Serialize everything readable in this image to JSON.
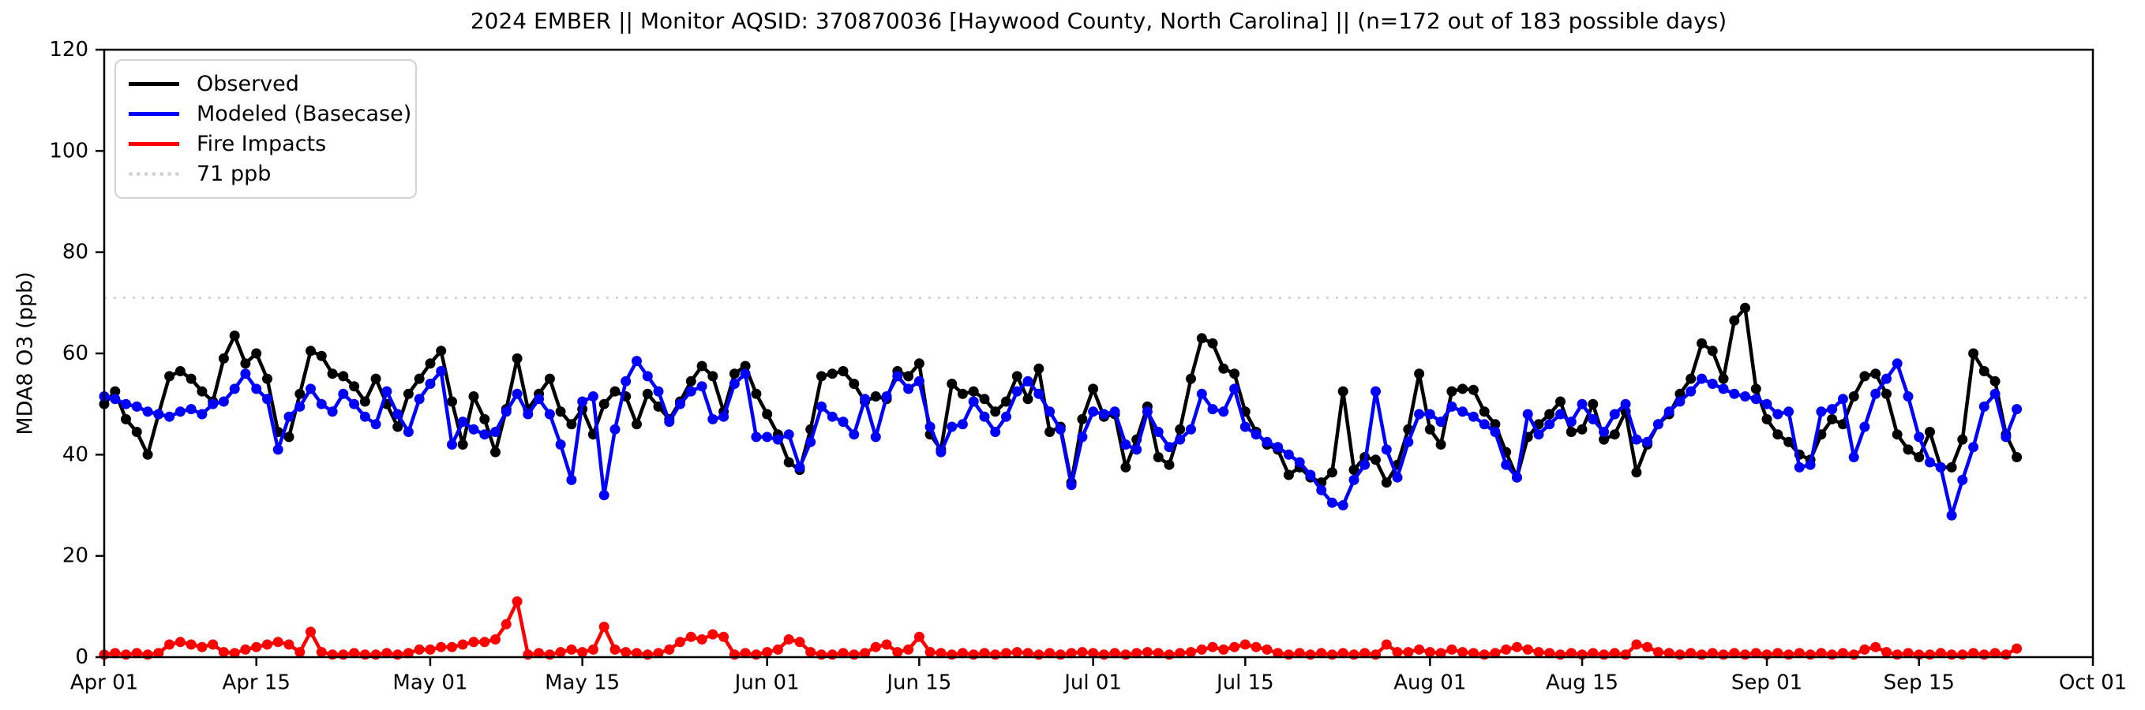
{
  "title": "2024 EMBER || Monitor AQSID: 370870036 [Haywood County, North Carolina] || (n=172 out of 183 possible days)",
  "chart_data": {
    "type": "line",
    "title": "2024 EMBER || Monitor AQSID: 370870036 [Haywood County, North Carolina] || (n=172 out of 183 possible days)",
    "ylabel": "MDA8 O3 (ppb)",
    "ylim": [
      0,
      120
    ],
    "yticks": [
      0,
      20,
      40,
      60,
      80,
      100,
      120
    ],
    "x_total_days": 183,
    "x_start_label": "Apr 01",
    "grid": "off",
    "legend_position": "upper-left",
    "xticks": [
      {
        "label": "Apr 01",
        "day": 0
      },
      {
        "label": "Apr 15",
        "day": 14
      },
      {
        "label": "May 01",
        "day": 30
      },
      {
        "label": "May 15",
        "day": 44
      },
      {
        "label": "Jun 01",
        "day": 61
      },
      {
        "label": "Jun 15",
        "day": 75
      },
      {
        "label": "Jul 01",
        "day": 91
      },
      {
        "label": "Jul 15",
        "day": 105
      },
      {
        "label": "Aug 01",
        "day": 122
      },
      {
        "label": "Aug 15",
        "day": 136
      },
      {
        "label": "Sep 01",
        "day": 153
      },
      {
        "label": "Sep 15",
        "day": 167
      },
      {
        "label": "Oct 01",
        "day": 183
      }
    ],
    "threshold": {
      "value": 71,
      "label": "71 ppb",
      "color": "#d3d3d3",
      "style": "dotted"
    },
    "legend": [
      {
        "label": "Observed",
        "color": "#000000",
        "style": "solid"
      },
      {
        "label": "Modeled (Basecase)",
        "color": "#0000ff",
        "style": "solid"
      },
      {
        "label": "Fire Impacts",
        "color": "#ff0000",
        "style": "solid"
      },
      {
        "label": "71 ppb",
        "color": "#d3d3d3",
        "style": "dotted"
      }
    ],
    "series": [
      {
        "name": "Observed",
        "color": "#000000",
        "start_day": 0,
        "values": [
          50,
          52.5,
          47,
          44.5,
          40,
          48,
          55.5,
          56.5,
          55,
          52.5,
          50.5,
          59,
          63.5,
          58,
          60,
          55,
          44.5,
          43.5,
          52,
          60.5,
          59.5,
          56,
          55.5,
          53.5,
          50.5,
          55,
          50,
          45.5,
          52,
          55,
          58,
          60.5,
          50.5,
          42,
          51.5,
          47,
          40.5,
          49,
          59,
          49,
          52,
          55,
          48.5,
          46,
          49,
          44,
          50,
          52.5,
          51.5,
          46,
          52,
          49.5,
          47,
          50.5,
          54.5,
          57.5,
          55.5,
          48.5,
          56,
          57.5,
          52,
          48,
          44,
          38.5,
          37,
          45,
          55.5,
          56,
          56.5,
          54,
          50.5,
          51.5,
          51,
          56.5,
          55.5,
          58,
          44,
          41,
          54,
          52,
          52.5,
          51,
          48.5,
          50.5,
          55.5,
          51,
          57,
          44.5,
          45.5,
          34.5,
          47,
          53,
          47.5,
          48,
          37.5,
          43,
          49.5,
          39.5,
          38,
          45,
          55,
          63,
          62,
          57,
          56,
          48.5,
          44.5,
          42,
          41,
          36,
          37.5,
          35.5,
          34.5,
          36.5,
          52.5,
          37,
          39.5,
          39,
          34.5,
          38,
          45,
          56,
          45,
          42,
          52.5,
          53,
          52.8,
          48.5,
          46,
          40.5,
          35.5,
          43.5,
          46,
          48,
          50.5,
          44.5,
          45,
          50,
          43,
          44,
          48.5,
          36.5,
          42,
          46,
          48,
          52,
          55,
          62,
          60.5,
          55,
          66.5,
          69,
          53,
          47,
          44,
          42.5,
          40,
          39,
          44,
          47,
          46,
          51.5,
          55.5,
          56,
          52,
          44,
          41,
          39.5,
          44.5,
          37.5,
          37.5,
          43,
          60,
          56.5,
          54.5,
          44,
          39.5
        ]
      },
      {
        "name": "Modeled (Basecase)",
        "color": "#0000ff",
        "start_day": 0,
        "values": [
          51.5,
          51,
          50,
          49.5,
          48.5,
          48,
          47.5,
          48.5,
          49,
          48,
          50,
          50.5,
          53,
          56,
          53,
          51,
          41,
          47.5,
          49.5,
          53,
          50,
          48.5,
          52,
          50,
          47.5,
          46,
          52.5,
          48,
          44.5,
          51,
          54,
          56.5,
          42,
          46.5,
          45,
          44,
          44.5,
          48.5,
          52,
          48,
          51,
          48,
          42,
          35,
          50.5,
          51.5,
          32,
          45,
          54.5,
          58.5,
          55.5,
          52.5,
          46.5,
          50,
          52.5,
          53.5,
          47,
          47.5,
          54,
          56,
          43.5,
          43.5,
          43,
          44,
          37.5,
          42.5,
          49.5,
          47.5,
          46.5,
          44,
          51,
          43.5,
          51.5,
          55.5,
          53,
          54.5,
          45.5,
          40.5,
          45.5,
          46,
          50.5,
          47.5,
          44.5,
          47.5,
          52.5,
          54.5,
          52,
          48.5,
          45,
          34,
          43.5,
          48.5,
          48,
          48.5,
          42,
          41,
          48.5,
          44.5,
          41.5,
          43,
          45,
          52,
          49,
          48.5,
          53,
          45.5,
          44,
          42.5,
          41.5,
          40,
          38.5,
          36,
          33,
          30.5,
          30,
          35,
          38,
          52.5,
          41,
          35.5,
          42.5,
          48,
          48,
          46.5,
          49.5,
          48.5,
          47.5,
          46,
          44.5,
          38,
          35.5,
          48,
          44,
          46,
          48,
          46.5,
          50,
          47,
          44.5,
          48,
          50,
          43,
          42.5,
          46,
          48.5,
          50.5,
          52.5,
          55,
          54,
          53,
          52,
          51.5,
          51,
          50,
          48,
          48.5,
          37.5,
          38,
          48.5,
          49,
          51,
          39.5,
          45.5,
          52,
          55,
          58,
          51.5,
          43.5,
          38.5,
          37.5,
          28,
          35,
          41.5,
          49.5,
          52,
          43.5,
          49
        ]
      },
      {
        "name": "Fire Impacts",
        "color": "#ff0000",
        "start_day": 0,
        "values": [
          0.5,
          0.8,
          0.5,
          0.8,
          0.5,
          0.8,
          2.5,
          3,
          2.5,
          2,
          2.5,
          1,
          0.8,
          1.5,
          2,
          2.5,
          3,
          2.5,
          1,
          5,
          1,
          0.5,
          0.5,
          0.8,
          0.5,
          0.5,
          0.8,
          0.5,
          0.8,
          1.5,
          1.5,
          2,
          2,
          2.5,
          3,
          3,
          3.5,
          6.5,
          11,
          0.5,
          0.8,
          0.5,
          1,
          1.5,
          1,
          1.5,
          6,
          1.5,
          1,
          0.8,
          0.5,
          0.8,
          1.5,
          3,
          4,
          3.5,
          4.5,
          4,
          0.5,
          0.8,
          0.5,
          1,
          1.5,
          3.5,
          3,
          1,
          0.5,
          0.5,
          0.8,
          0.5,
          0.8,
          2,
          2.5,
          1,
          1.5,
          4,
          1,
          0.8,
          0.5,
          0.8,
          0.5,
          0.8,
          0.5,
          0.8,
          1,
          0.8,
          0.5,
          0.8,
          0.5,
          0.8,
          1,
          0.8,
          0.5,
          0.8,
          0.5,
          0.8,
          1,
          0.8,
          0.5,
          0.8,
          1,
          1.5,
          2,
          1.5,
          2,
          2.5,
          2,
          1.5,
          0.8,
          0.5,
          0.8,
          0.5,
          0.8,
          0.5,
          0.8,
          0.5,
          0.8,
          0.5,
          2.5,
          1,
          1,
          1.5,
          1,
          0.8,
          1.5,
          1,
          0.8,
          0.5,
          0.8,
          1.5,
          2,
          1.5,
          1,
          0.8,
          0.5,
          0.8,
          0.5,
          0.8,
          0.5,
          0.8,
          0.5,
          2.5,
          2,
          1,
          0.8,
          0.5,
          0.8,
          0.5,
          0.8,
          0.5,
          0.8,
          0.5,
          0.8,
          0.5,
          0.8,
          0.5,
          0.8,
          0.5,
          0.8,
          0.5,
          0.8,
          0.5,
          1.5,
          2,
          1,
          0.5,
          0.8,
          0.5,
          0.5,
          0.8,
          0.5,
          0.5,
          0.8,
          0.5,
          0.8,
          0.5,
          1.7
        ]
      }
    ]
  }
}
